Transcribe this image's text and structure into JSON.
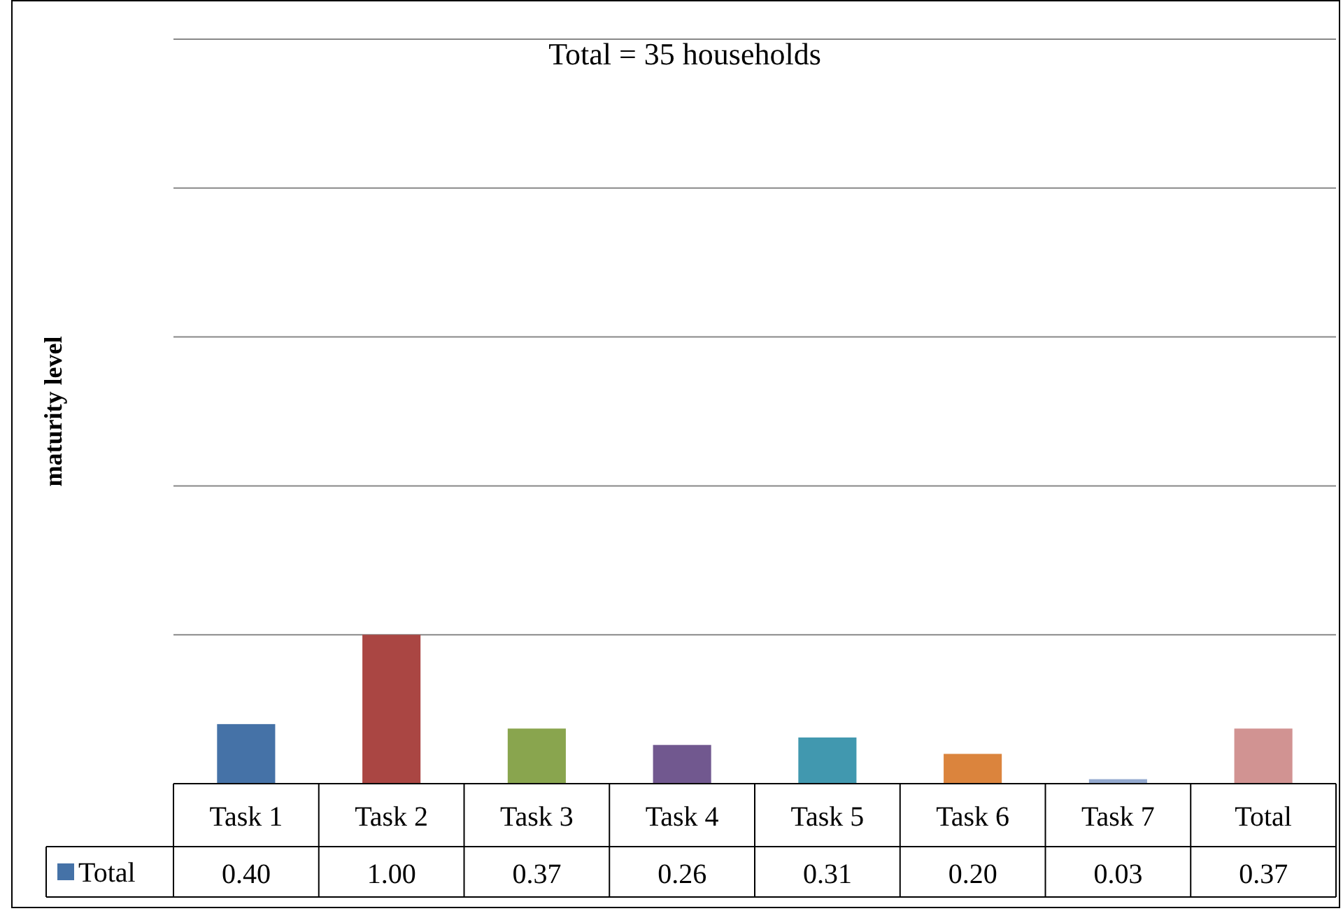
{
  "chart_data": {
    "type": "bar",
    "title": "Total = 35 households",
    "ylabel": "maturity level",
    "categories": [
      "Task 1",
      "Task 2",
      "Task 3",
      "Task 4",
      "Task 5",
      "Task 6",
      "Task 7",
      "Total"
    ],
    "series": [
      {
        "name": "Total",
        "colors": [
          "#4572a7",
          "#aa4643",
          "#89a54e",
          "#71588f",
          "#4198af",
          "#db843d",
          "#93a9cf",
          "#d19392"
        ],
        "values": [
          0.4,
          1.0,
          0.37,
          0.26,
          0.31,
          0.2,
          0.03,
          0.37
        ],
        "value_labels": [
          "0.40",
          "1.00",
          "0.37",
          "0.26",
          "0.31",
          "0.20",
          "0.03",
          "0.37"
        ]
      }
    ],
    "ylim": [
      0,
      5
    ],
    "yticks": [
      {
        "value": 0,
        "label": null
      },
      {
        "value": 1,
        "label": null
      },
      {
        "value": 2,
        "label": null
      },
      {
        "value": 3,
        "label": null
      },
      {
        "value": 4,
        "label": null
      },
      {
        "value": 5,
        "label": null
      }
    ],
    "grid": "y",
    "tick_labels": "x",
    "legend": "bottom left"
  }
}
